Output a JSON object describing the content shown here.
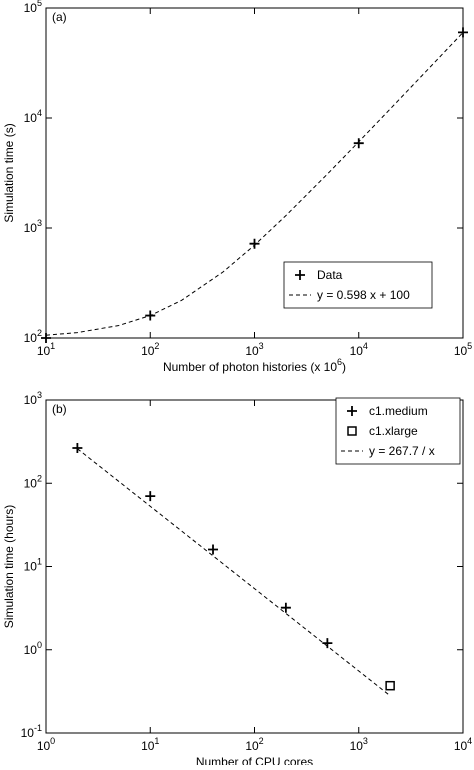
{
  "chart_data": [
    {
      "type": "line",
      "panel": "(a)",
      "x_label": "Number of photon histories (x 10",
      "x_label_sup": "6",
      "x_label_end": ")",
      "y_label": "Simulation time (s)",
      "xscale": "log",
      "yscale": "log",
      "xlim": [
        10,
        100000
      ],
      "ylim": [
        100,
        100000
      ],
      "xticks": [
        {
          "value": 10,
          "label": "10",
          "sup": "1"
        },
        {
          "value": 100,
          "label": "10",
          "sup": "2"
        },
        {
          "value": 1000,
          "label": "10",
          "sup": "3"
        },
        {
          "value": 10000,
          "label": "10",
          "sup": "4"
        },
        {
          "value": 100000,
          "label": "10",
          "sup": "5"
        }
      ],
      "yticks": [
        {
          "value": 100,
          "label": "10",
          "sup": "2"
        },
        {
          "value": 1000,
          "label": "10",
          "sup": "3"
        },
        {
          "value": 10000,
          "label": "10",
          "sup": "4"
        },
        {
          "value": 100000,
          "label": "10",
          "sup": "5"
        }
      ],
      "legend": "lower right",
      "series": [
        {
          "name": "Data",
          "color": "#000000",
          "marker": "plus",
          "x": [
            10,
            100,
            1000,
            10000,
            100000
          ],
          "values": [
            100,
            160,
            720,
            5900,
            60000
          ]
        },
        {
          "name": "y = 0.598 x + 100",
          "color": "#000000",
          "marker": "none",
          "dash": true,
          "x": [
            10,
            20,
            50,
            100,
            200,
            500,
            1000,
            2000,
            5000,
            10000,
            20000,
            50000,
            100000
          ],
          "values": [
            106,
            112,
            130,
            160,
            220,
            399,
            698,
            1296,
            3090,
            6080,
            12060,
            30000,
            59900
          ]
        }
      ]
    },
    {
      "type": "line",
      "panel": "(b)",
      "x_label": "Number of CPU cores",
      "y_label": "Simulation time (hours)",
      "xscale": "log",
      "yscale": "log",
      "xlim": [
        1,
        10000
      ],
      "ylim": [
        0.1,
        1000
      ],
      "xticks": [
        {
          "value": 1,
          "label": "10",
          "sup": "0"
        },
        {
          "value": 10,
          "label": "10",
          "sup": "1"
        },
        {
          "value": 100,
          "label": "10",
          "sup": "2"
        },
        {
          "value": 1000,
          "label": "10",
          "sup": "3"
        },
        {
          "value": 10000,
          "label": "10",
          "sup": "4"
        }
      ],
      "yticks": [
        {
          "value": 0.1,
          "label": "10",
          "sup": "-1"
        },
        {
          "value": 1,
          "label": "10",
          "sup": "0"
        },
        {
          "value": 10,
          "label": "10",
          "sup": "1"
        },
        {
          "value": 100,
          "label": "10",
          "sup": "2"
        },
        {
          "value": 1000,
          "label": "10",
          "sup": "3"
        }
      ],
      "legend": "upper right",
      "series": [
        {
          "name": "c1.medium",
          "color": "#000000",
          "marker": "plus",
          "x": [
            2,
            10,
            40,
            200,
            500
          ],
          "values": [
            265,
            70,
            16,
            3.2,
            1.2
          ]
        },
        {
          "name": "c1.xlarge",
          "color": "#000000",
          "marker": "square",
          "x": [
            2000
          ],
          "values": [
            0.37
          ]
        },
        {
          "name": "y = 267.7 / x",
          "color": "#000000",
          "marker": "none",
          "dash": true,
          "x": [
            2,
            2000
          ],
          "values": [
            260,
            0.28
          ]
        }
      ]
    }
  ]
}
